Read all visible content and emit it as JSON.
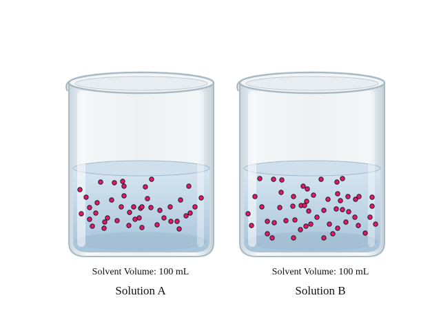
{
  "beakers": [
    {
      "label": "Solution A",
      "volume_text": "Solvent Volume: 100 mL",
      "particle_count": 44
    },
    {
      "label": "Solution B",
      "volume_text": "Solvent Volume: 100 mL",
      "particle_count": 54
    }
  ],
  "colors": {
    "particle": "#e8166f",
    "particle_outline": "#1a1a1a",
    "solution": "#b9d3e6",
    "glass": "#d9e4ea"
  }
}
